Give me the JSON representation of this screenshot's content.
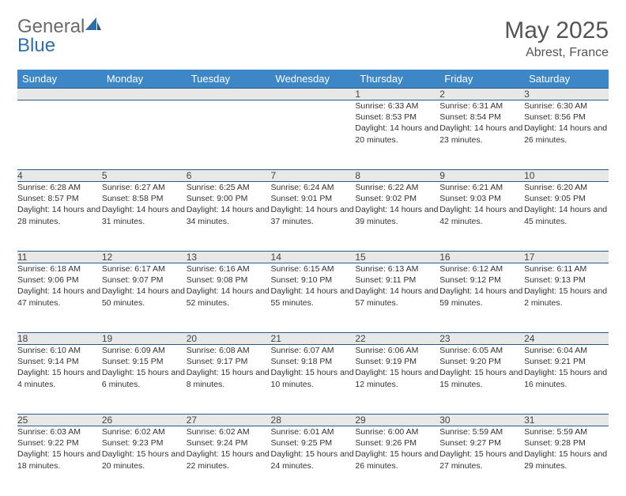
{
  "brand": {
    "part1": "General",
    "part2": "Blue"
  },
  "title": "May 2025",
  "location": "Abrest, France",
  "colors": {
    "header_bg": "#3d87c7",
    "border": "#2a5a87",
    "daynum_bg": "#e8e8e8",
    "logo_gray": "#6b6b6b",
    "logo_blue": "#2f6fa9"
  },
  "day_headers": [
    "Sunday",
    "Monday",
    "Tuesday",
    "Wednesday",
    "Thursday",
    "Friday",
    "Saturday"
  ],
  "weeks": [
    [
      null,
      null,
      null,
      null,
      {
        "n": "1",
        "sr": "Sunrise: 6:33 AM",
        "ss": "Sunset: 8:53 PM",
        "dl": "Daylight: 14 hours and 20 minutes."
      },
      {
        "n": "2",
        "sr": "Sunrise: 6:31 AM",
        "ss": "Sunset: 8:54 PM",
        "dl": "Daylight: 14 hours and 23 minutes."
      },
      {
        "n": "3",
        "sr": "Sunrise: 6:30 AM",
        "ss": "Sunset: 8:56 PM",
        "dl": "Daylight: 14 hours and 26 minutes."
      }
    ],
    [
      {
        "n": "4",
        "sr": "Sunrise: 6:28 AM",
        "ss": "Sunset: 8:57 PM",
        "dl": "Daylight: 14 hours and 28 minutes."
      },
      {
        "n": "5",
        "sr": "Sunrise: 6:27 AM",
        "ss": "Sunset: 8:58 PM",
        "dl": "Daylight: 14 hours and 31 minutes."
      },
      {
        "n": "6",
        "sr": "Sunrise: 6:25 AM",
        "ss": "Sunset: 9:00 PM",
        "dl": "Daylight: 14 hours and 34 minutes."
      },
      {
        "n": "7",
        "sr": "Sunrise: 6:24 AM",
        "ss": "Sunset: 9:01 PM",
        "dl": "Daylight: 14 hours and 37 minutes."
      },
      {
        "n": "8",
        "sr": "Sunrise: 6:22 AM",
        "ss": "Sunset: 9:02 PM",
        "dl": "Daylight: 14 hours and 39 minutes."
      },
      {
        "n": "9",
        "sr": "Sunrise: 6:21 AM",
        "ss": "Sunset: 9:03 PM",
        "dl": "Daylight: 14 hours and 42 minutes."
      },
      {
        "n": "10",
        "sr": "Sunrise: 6:20 AM",
        "ss": "Sunset: 9:05 PM",
        "dl": "Daylight: 14 hours and 45 minutes."
      }
    ],
    [
      {
        "n": "11",
        "sr": "Sunrise: 6:18 AM",
        "ss": "Sunset: 9:06 PM",
        "dl": "Daylight: 14 hours and 47 minutes."
      },
      {
        "n": "12",
        "sr": "Sunrise: 6:17 AM",
        "ss": "Sunset: 9:07 PM",
        "dl": "Daylight: 14 hours and 50 minutes."
      },
      {
        "n": "13",
        "sr": "Sunrise: 6:16 AM",
        "ss": "Sunset: 9:08 PM",
        "dl": "Daylight: 14 hours and 52 minutes."
      },
      {
        "n": "14",
        "sr": "Sunrise: 6:15 AM",
        "ss": "Sunset: 9:10 PM",
        "dl": "Daylight: 14 hours and 55 minutes."
      },
      {
        "n": "15",
        "sr": "Sunrise: 6:13 AM",
        "ss": "Sunset: 9:11 PM",
        "dl": "Daylight: 14 hours and 57 minutes."
      },
      {
        "n": "16",
        "sr": "Sunrise: 6:12 AM",
        "ss": "Sunset: 9:12 PM",
        "dl": "Daylight: 14 hours and 59 minutes."
      },
      {
        "n": "17",
        "sr": "Sunrise: 6:11 AM",
        "ss": "Sunset: 9:13 PM",
        "dl": "Daylight: 15 hours and 2 minutes."
      }
    ],
    [
      {
        "n": "18",
        "sr": "Sunrise: 6:10 AM",
        "ss": "Sunset: 9:14 PM",
        "dl": "Daylight: 15 hours and 4 minutes."
      },
      {
        "n": "19",
        "sr": "Sunrise: 6:09 AM",
        "ss": "Sunset: 9:15 PM",
        "dl": "Daylight: 15 hours and 6 minutes."
      },
      {
        "n": "20",
        "sr": "Sunrise: 6:08 AM",
        "ss": "Sunset: 9:17 PM",
        "dl": "Daylight: 15 hours and 8 minutes."
      },
      {
        "n": "21",
        "sr": "Sunrise: 6:07 AM",
        "ss": "Sunset: 9:18 PM",
        "dl": "Daylight: 15 hours and 10 minutes."
      },
      {
        "n": "22",
        "sr": "Sunrise: 6:06 AM",
        "ss": "Sunset: 9:19 PM",
        "dl": "Daylight: 15 hours and 12 minutes."
      },
      {
        "n": "23",
        "sr": "Sunrise: 6:05 AM",
        "ss": "Sunset: 9:20 PM",
        "dl": "Daylight: 15 hours and 15 minutes."
      },
      {
        "n": "24",
        "sr": "Sunrise: 6:04 AM",
        "ss": "Sunset: 9:21 PM",
        "dl": "Daylight: 15 hours and 16 minutes."
      }
    ],
    [
      {
        "n": "25",
        "sr": "Sunrise: 6:03 AM",
        "ss": "Sunset: 9:22 PM",
        "dl": "Daylight: 15 hours and 18 minutes."
      },
      {
        "n": "26",
        "sr": "Sunrise: 6:02 AM",
        "ss": "Sunset: 9:23 PM",
        "dl": "Daylight: 15 hours and 20 minutes."
      },
      {
        "n": "27",
        "sr": "Sunrise: 6:02 AM",
        "ss": "Sunset: 9:24 PM",
        "dl": "Daylight: 15 hours and 22 minutes."
      },
      {
        "n": "28",
        "sr": "Sunrise: 6:01 AM",
        "ss": "Sunset: 9:25 PM",
        "dl": "Daylight: 15 hours and 24 minutes."
      },
      {
        "n": "29",
        "sr": "Sunrise: 6:00 AM",
        "ss": "Sunset: 9:26 PM",
        "dl": "Daylight: 15 hours and 26 minutes."
      },
      {
        "n": "30",
        "sr": "Sunrise: 5:59 AM",
        "ss": "Sunset: 9:27 PM",
        "dl": "Daylight: 15 hours and 27 minutes."
      },
      {
        "n": "31",
        "sr": "Sunrise: 5:59 AM",
        "ss": "Sunset: 9:28 PM",
        "dl": "Daylight: 15 hours and 29 minutes."
      }
    ]
  ]
}
